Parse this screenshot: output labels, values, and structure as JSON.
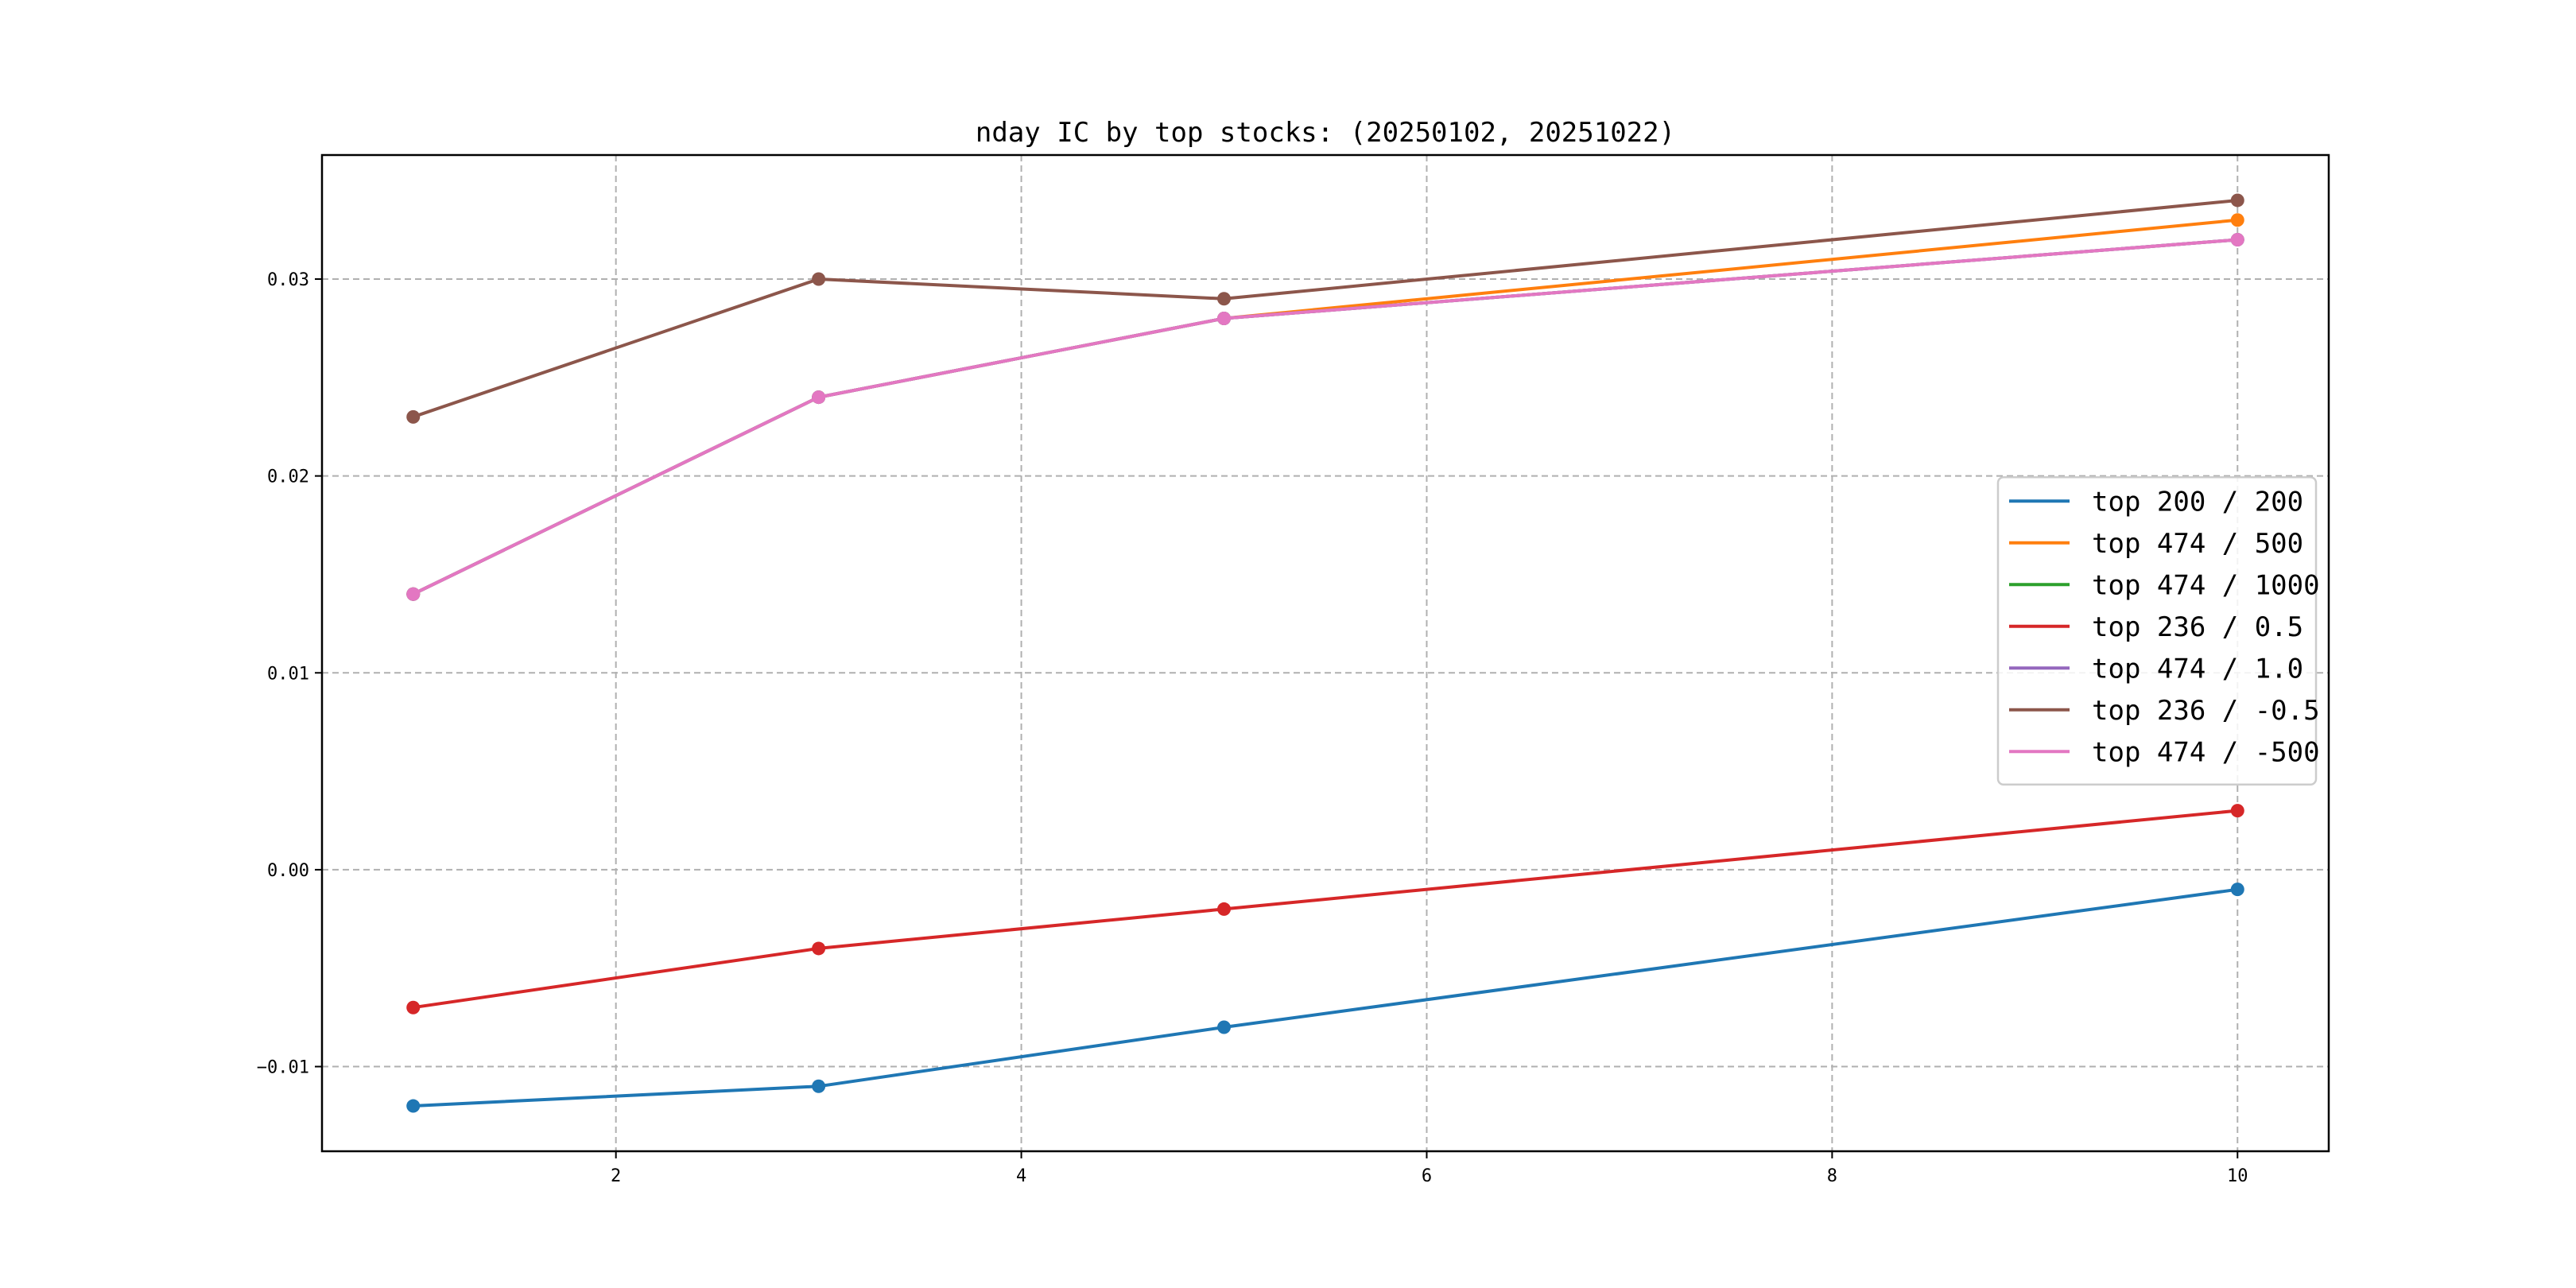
{
  "chart_data": {
    "type": "line",
    "title": "nday IC by top stocks: (20250102, 20251022)",
    "xlabel": "",
    "ylabel": "",
    "x": [
      1,
      3,
      5,
      10
    ],
    "xlim": [
      0.55,
      10.45
    ],
    "ylim": [
      -0.0143,
      0.0363
    ],
    "xticks": [
      2,
      4,
      6,
      8,
      10
    ],
    "xtick_labels": [
      "2",
      "4",
      "6",
      "8",
      "10"
    ],
    "yticks": [
      -0.01,
      0.0,
      0.01,
      0.02,
      0.03
    ],
    "ytick_labels": [
      "−0.01",
      "0.00",
      "0.01",
      "0.02",
      "0.03"
    ],
    "grid": true,
    "markers": true,
    "legend_position": "center-right",
    "series": [
      {
        "name": "top 200 / 200",
        "color": "#1f77b4",
        "values": [
          -0.012,
          -0.011,
          -0.008,
          -0.001
        ]
      },
      {
        "name": "top 474 / 500",
        "color": "#ff7f0e",
        "values": [
          0.014,
          0.024,
          0.028,
          0.033
        ]
      },
      {
        "name": "top 474 / 1000",
        "color": "#2ca02c",
        "values": [
          0.014,
          0.024,
          0.028,
          0.032
        ]
      },
      {
        "name": "top 236 / 0.5",
        "color": "#d62728",
        "values": [
          -0.007,
          -0.004,
          -0.002,
          0.003
        ]
      },
      {
        "name": "top 474 / 1.0",
        "color": "#9467bd",
        "values": [
          0.014,
          0.024,
          0.028,
          0.032
        ]
      },
      {
        "name": "top 236 / -0.5",
        "color": "#8c564b",
        "values": [
          0.023,
          0.03,
          0.029,
          0.034
        ]
      },
      {
        "name": "top 474 / -500",
        "color": "#e377c2",
        "values": [
          0.014,
          0.024,
          0.028,
          0.032
        ]
      }
    ]
  }
}
